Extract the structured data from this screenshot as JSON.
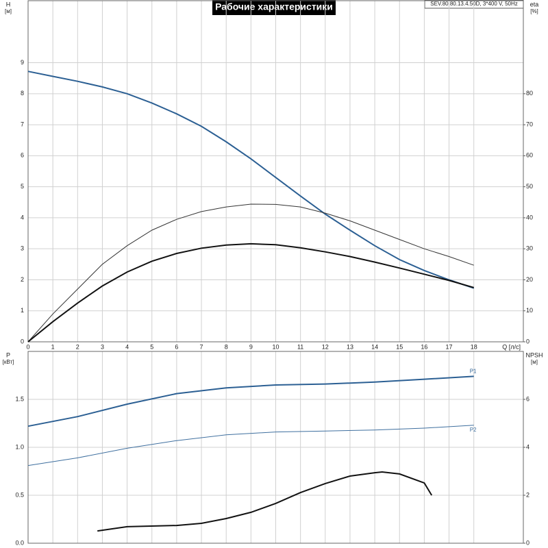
{
  "chart_data": [
    {
      "type": "line",
      "title": "Рабочие характеристики",
      "subtitle": "SEV.80.80.13.4.50D, 3*400 V, 50Hz",
      "x_label": "Q [л/с]",
      "y_label": "H",
      "y_unit": "[м]",
      "y2_label": "eta",
      "y2_unit": "[%]",
      "x": [
        0,
        1,
        2,
        3,
        4,
        5,
        6,
        7,
        8,
        9,
        10,
        11,
        12,
        13,
        14,
        15,
        16,
        17,
        18
      ],
      "xlim": [
        0,
        20
      ],
      "xticks": [
        0,
        1,
        2,
        3,
        4,
        5,
        6,
        7,
        8,
        9,
        10,
        11,
        12,
        13,
        14,
        15,
        16,
        17,
        18
      ],
      "ylim": [
        0,
        11
      ],
      "yticks": [
        0,
        1,
        2,
        3,
        4,
        5,
        6,
        7,
        8,
        9
      ],
      "y2lim": [
        0,
        110
      ],
      "y2ticks": [
        0,
        10,
        20,
        30,
        40,
        50,
        60,
        70,
        80
      ],
      "grid": true,
      "series": [
        {
          "color": "#2b5f93",
          "width": 2,
          "values": [
            8.72,
            8.56,
            8.4,
            8.22,
            8.0,
            7.7,
            7.35,
            6.95,
            6.45,
            5.9,
            5.3,
            4.7,
            4.12,
            3.6,
            3.1,
            2.65,
            2.3,
            2.0,
            1.73
          ]
        },
        {
          "color": "#333333",
          "width": 1,
          "axis": "y2",
          "values": [
            0,
            9,
            17,
            25,
            31,
            36,
            39.5,
            42,
            43.5,
            44.4,
            44.3,
            43.5,
            41.5,
            39,
            36,
            33,
            30,
            27.5,
            24.7
          ]
        },
        {
          "color": "#111111",
          "width": 2,
          "axis": "y2",
          "values": [
            0,
            6.5,
            12.5,
            18,
            22.5,
            26,
            28.5,
            30.2,
            31.2,
            31.6,
            31.3,
            30.3,
            29,
            27.5,
            25.7,
            23.8,
            21.8,
            19.8,
            17.5
          ]
        }
      ]
    },
    {
      "type": "line",
      "y_label": "P",
      "y_unit": "[кВт]",
      "y2_label": "NPSH",
      "y2_unit": "[м]",
      "xlim": [
        0,
        20
      ],
      "xticks": [
        0,
        1,
        2,
        3,
        4,
        5,
        6,
        7,
        8,
        9,
        10,
        11,
        12,
        13,
        14,
        15,
        16,
        17,
        18
      ],
      "ylim": [
        0,
        2
      ],
      "yticks": [
        {
          "value": 0,
          "label": "0.0"
        },
        {
          "value": 0.5,
          "label": "0.5"
        },
        {
          "value": 1,
          "label": "1.0"
        },
        {
          "value": 1.5,
          "label": "1.5"
        }
      ],
      "y2lim": [
        0,
        8
      ],
      "y2ticks": [
        0,
        2,
        4,
        6
      ],
      "grid": true,
      "series": [
        {
          "name": "P1",
          "color": "#2b5f93",
          "width": 2,
          "x": [
            0,
            2,
            4,
            6,
            8,
            10,
            12,
            14,
            16,
            18
          ],
          "values": [
            1.22,
            1.32,
            1.45,
            1.56,
            1.62,
            1.65,
            1.66,
            1.68,
            1.71,
            1.74
          ]
        },
        {
          "name": "P2",
          "color": "#3d6e9e",
          "width": 1,
          "x": [
            0,
            2,
            4,
            6,
            8,
            10,
            12,
            14,
            16,
            18
          ],
          "values": [
            0.81,
            0.89,
            0.99,
            1.07,
            1.13,
            1.16,
            1.17,
            1.18,
            1.2,
            1.23
          ]
        },
        {
          "color": "#111111",
          "width": 2,
          "axis": "y2",
          "x": [
            2.8,
            4,
            6,
            7,
            8,
            9,
            10,
            11,
            12,
            13,
            14,
            14.3,
            15,
            16,
            16.3
          ],
          "values": [
            0.51,
            0.69,
            0.74,
            0.83,
            1.03,
            1.29,
            1.66,
            2.11,
            2.49,
            2.8,
            2.94,
            2.97,
            2.89,
            2.51,
            2.0
          ]
        }
      ]
    }
  ]
}
